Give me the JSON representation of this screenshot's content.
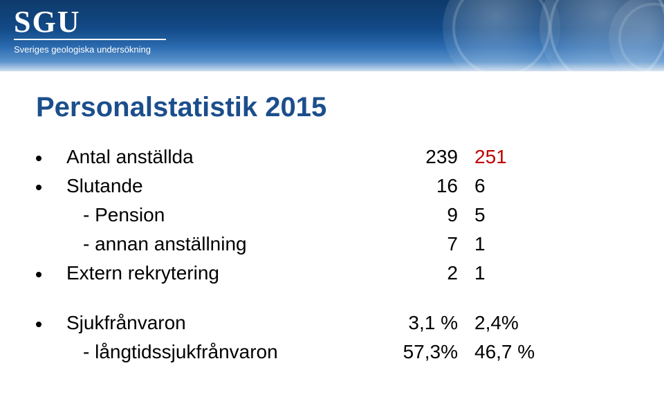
{
  "header": {
    "logo_main": "SGU",
    "logo_sub": "Sveriges geologiska undersökning",
    "background_gradient_top": "#0e3a6b",
    "background_gradient_bottom": "#dfe9f4"
  },
  "title": {
    "text": "Personalstatistik 2015",
    "color": "#1c4e8c",
    "fontsize": 40
  },
  "stats": {
    "row_fontsize": 28,
    "row_color": "#000000",
    "highlight_color": "#c00000",
    "rows": [
      {
        "bullet": true,
        "label": "Antal anställda",
        "v1": "239",
        "v2": "251",
        "highlight": true,
        "sub": false
      },
      {
        "bullet": true,
        "label": "Slutande",
        "v1": "16",
        "v2": "6",
        "highlight": false,
        "sub": false
      },
      {
        "bullet": false,
        "label": "- Pension",
        "v1": "9",
        "v2": "5",
        "highlight": false,
        "sub": true
      },
      {
        "bullet": false,
        "label": "- annan anställning",
        "v1": "7",
        "v2": "1",
        "highlight": false,
        "sub": true
      },
      {
        "bullet": true,
        "label": "Extern rekrytering",
        "v1": "2",
        "v2": "1",
        "highlight": false,
        "sub": false
      }
    ],
    "rows2": [
      {
        "bullet": true,
        "label": "Sjukfrånvaron",
        "v1": "3,1 %",
        "v2": "2,4%",
        "highlight": false,
        "sub": false
      },
      {
        "bullet": false,
        "label": "- långtidssjukfrånvaron",
        "v1": "57,3%",
        "v2": "46,7 %",
        "highlight": false,
        "sub": true
      }
    ]
  }
}
